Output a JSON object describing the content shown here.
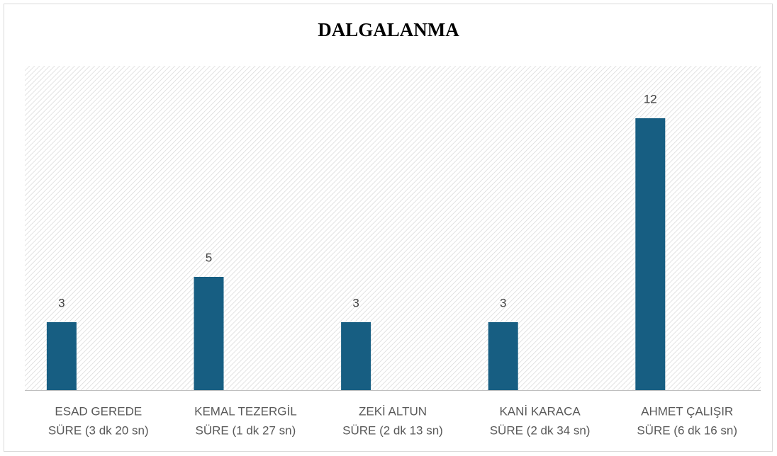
{
  "chart_data": {
    "type": "bar",
    "title": "DALGALANMA",
    "categories": [
      [
        "ESAD GEREDE",
        "SÜRE (3 dk 20 sn)"
      ],
      [
        "KEMAL TEZERGİL",
        "SÜRE (1 dk 27 sn)"
      ],
      [
        "ZEKİ ALTUN",
        "SÜRE (2 dk 13 sn)"
      ],
      [
        "KANİ KARACA",
        "SÜRE (2 dk 34 sn)"
      ],
      [
        "AHMET ÇALIŞIR",
        "SÜRE (6 dk 16 sn)"
      ]
    ],
    "values": [
      3,
      5,
      3,
      3,
      12
    ],
    "color": "#175e82",
    "ylim": [
      0,
      14
    ]
  }
}
